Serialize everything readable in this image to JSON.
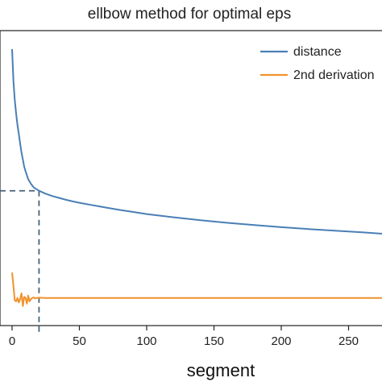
{
  "chart_data": {
    "type": "line",
    "title": "ellbow method for optimal eps",
    "xlabel": "segment",
    "ylabel": "",
    "xlim": [
      -8,
      276
    ],
    "x_ticks": [
      0,
      50,
      100,
      150,
      200,
      250
    ],
    "x_tick_labels": [
      "0",
      "50",
      "100",
      "150",
      "200",
      "250"
    ],
    "y_ticks_labeled": false,
    "grid": false,
    "legend_position": "top-right",
    "series": [
      {
        "name": "distance",
        "color": "#4a7fb5",
        "x": [
          0,
          1,
          2,
          3,
          4,
          5,
          6,
          7,
          8,
          9,
          10,
          12,
          14,
          16,
          18,
          20,
          25,
          30,
          35,
          40,
          45,
          50,
          60,
          70,
          80,
          90,
          100,
          120,
          140,
          160,
          180,
          200,
          220,
          240,
          260,
          276
        ],
        "y": [
          1.0,
          0.86,
          0.78,
          0.72,
          0.67,
          0.63,
          0.59,
          0.55,
          0.52,
          0.49,
          0.47,
          0.435,
          0.415,
          0.4,
          0.392,
          0.385,
          0.372,
          0.362,
          0.354,
          0.346,
          0.339,
          0.333,
          0.322,
          0.312,
          0.302,
          0.293,
          0.284,
          0.27,
          0.257,
          0.246,
          0.236,
          0.227,
          0.219,
          0.212,
          0.205,
          0.198
        ]
      },
      {
        "name": "2nd derivation",
        "color": "#f0922c",
        "x": [
          0,
          1,
          2,
          3,
          4,
          5,
          6,
          7,
          8,
          9,
          10,
          11,
          12,
          13,
          14,
          15,
          16,
          17,
          18,
          20,
          25,
          30,
          40,
          60,
          80,
          100,
          150,
          200,
          250,
          276
        ],
        "y": [
          0.03,
          -0.03,
          -0.09,
          -0.095,
          -0.08,
          -0.1,
          -0.085,
          -0.06,
          -0.115,
          -0.075,
          -0.08,
          -0.105,
          -0.07,
          -0.095,
          -0.085,
          -0.08,
          -0.078,
          -0.082,
          -0.08,
          -0.079,
          -0.08,
          -0.08,
          -0.08,
          -0.08,
          -0.08,
          -0.08,
          -0.08,
          -0.08,
          -0.08,
          -0.08
        ]
      }
    ],
    "reference_lines": [
      {
        "style": "dashed",
        "color": "#4a6278",
        "type": "vertical",
        "x": 20
      },
      {
        "style": "dashed",
        "color": "#4a6278",
        "type": "horizontal",
        "y": 0.385
      }
    ]
  }
}
